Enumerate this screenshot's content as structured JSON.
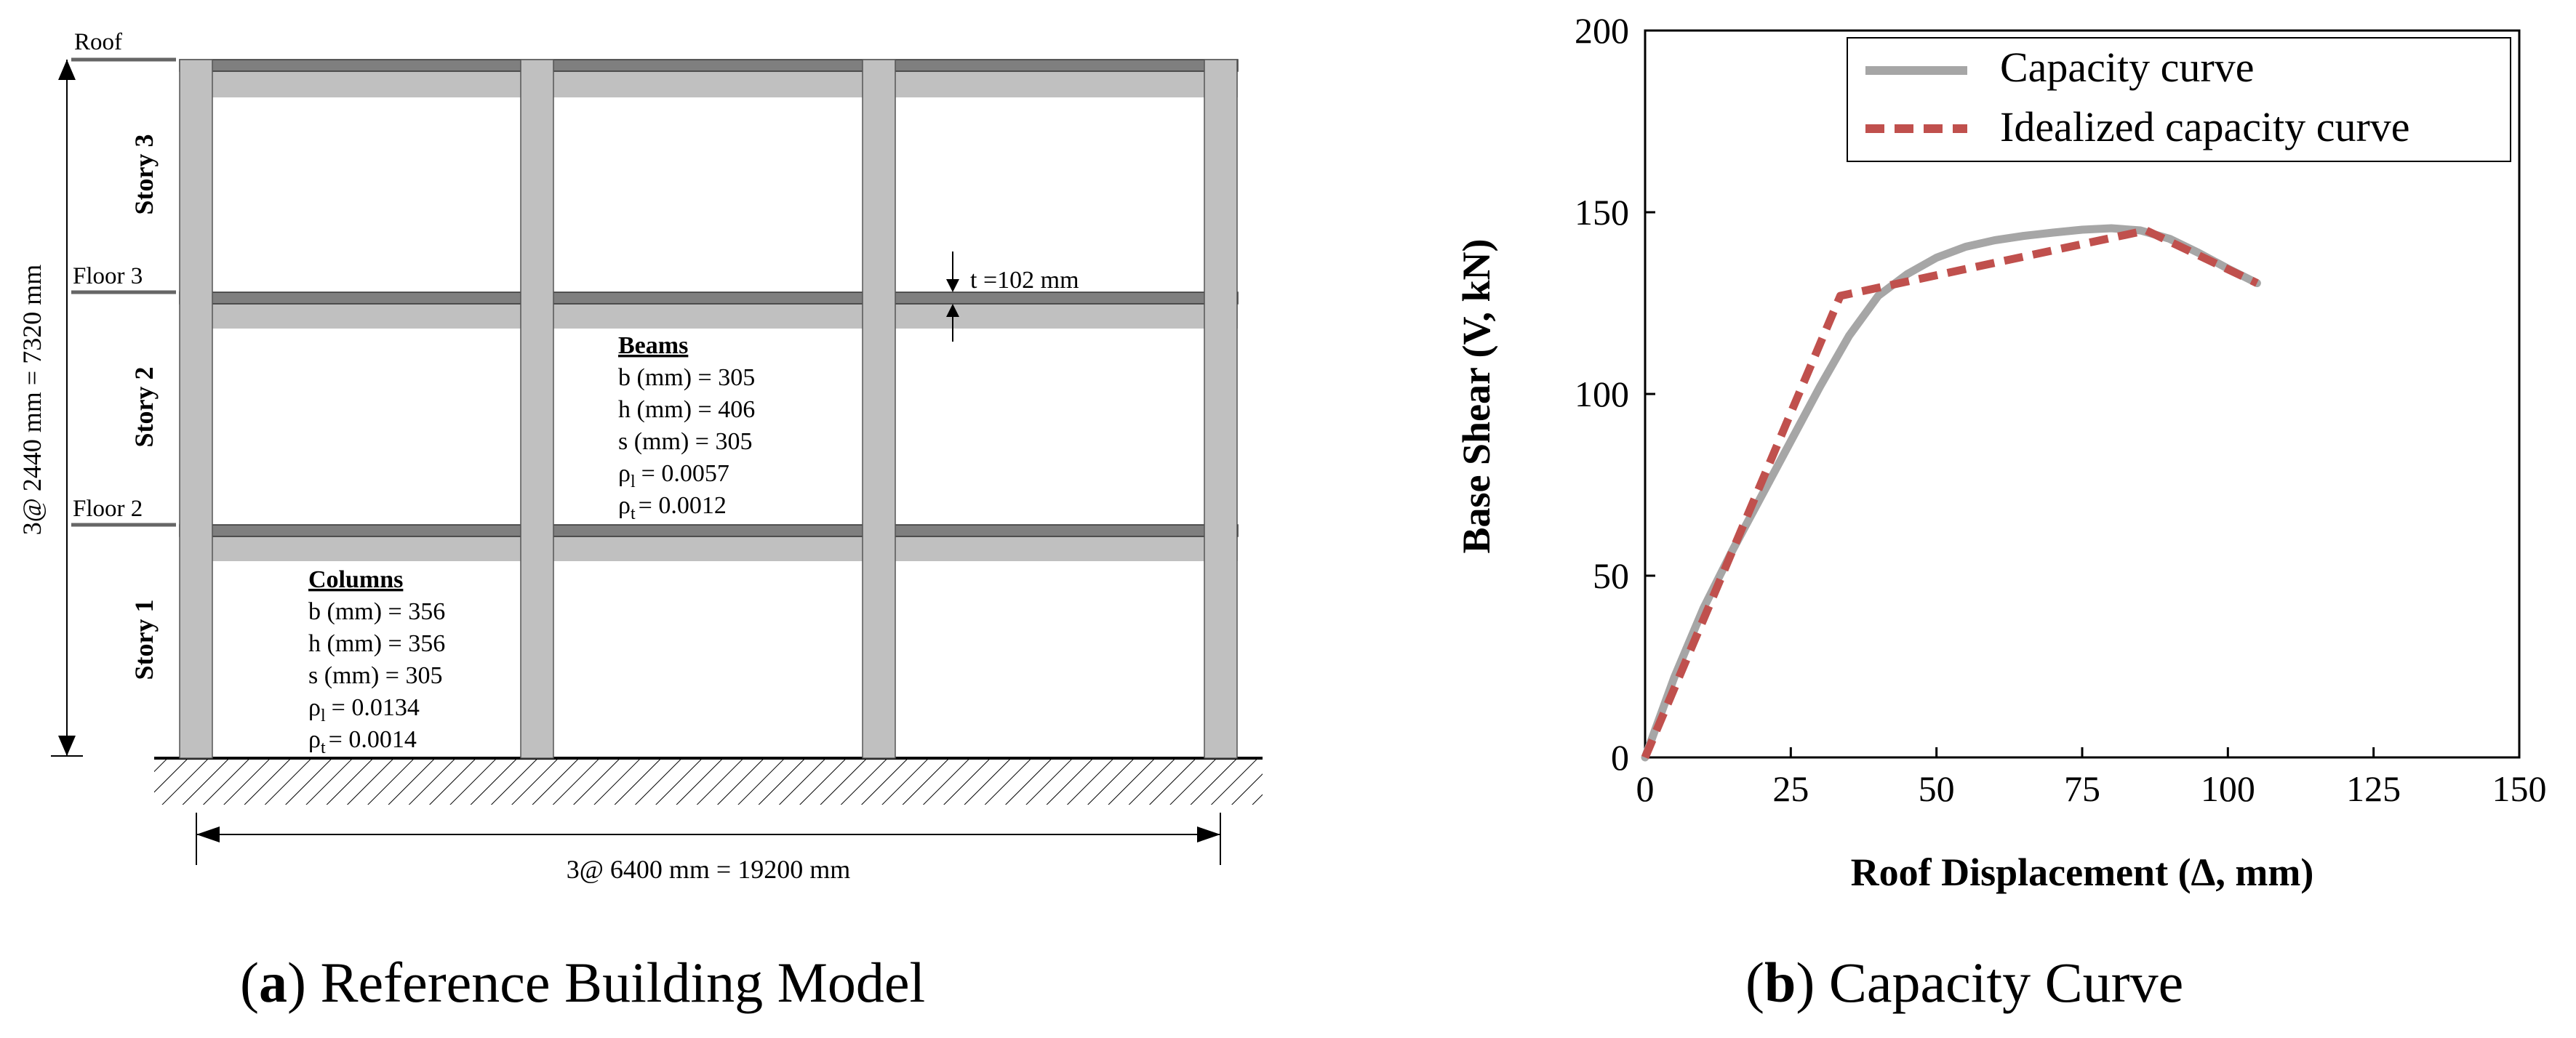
{
  "panel_a": {
    "levels": {
      "roof": "Roof",
      "floor3": "Floor 3",
      "floor2": "Floor 2"
    },
    "stories": [
      "Story 3",
      "Story 2",
      "Story 1"
    ],
    "height_dim": "3@ 2440 mm = 7320 mm",
    "width_dim": "3@ 6400 mm = 19200 mm",
    "slab_thickness": "t =102 mm",
    "beams": {
      "title": "Beams",
      "lines": [
        "b (mm) = 305",
        "h (mm) = 406",
        "s (mm) = 305"
      ],
      "rho_l": "= 0.0057",
      "rho_t": "= 0.0012"
    },
    "columns": {
      "title": "Columns",
      "lines": [
        "b (mm) = 356",
        "h (mm) = 356",
        "s (mm) = 305"
      ],
      "rho_l": "= 0.0134",
      "rho_t": "= 0.0014"
    },
    "rho_symbol": "ρ",
    "rho_l_sub": "l",
    "rho_t_sub": "t",
    "caption_label": "a",
    "caption_text": " Reference Building Model"
  },
  "panel_b": {
    "caption_label": "b",
    "caption_text": " Capacity Curve"
  },
  "colors": {
    "frame_fill": "#c0c0c0",
    "beam_dark": "#7f7f7f",
    "capacity": "#a6a6a6",
    "idealized": "#c0504d"
  },
  "chart_data": {
    "type": "line",
    "xlabel": "Roof Displacement (Δ, mm)",
    "ylabel": "Base Shear (V, kN)",
    "xlim": [
      0,
      150
    ],
    "ylim": [
      0,
      200
    ],
    "xticks": [
      0,
      25,
      50,
      75,
      100,
      125,
      150
    ],
    "yticks": [
      0,
      50,
      100,
      150,
      200
    ],
    "grid": false,
    "legend_position": "top-right",
    "series": [
      {
        "name": "Capacity curve",
        "style": "solid",
        "x": [
          0,
          5,
          10,
          15,
          20,
          25,
          30,
          35,
          40,
          45,
          50,
          55,
          60,
          65,
          70,
          75,
          80,
          85,
          90,
          95,
          100,
          105
        ],
        "y": [
          0,
          22,
          41,
          57,
          72,
          87,
          102,
          116,
          127,
          133,
          137.5,
          140.5,
          142.3,
          143.5,
          144.4,
          145.2,
          145.6,
          145,
          142.7,
          138.8,
          134.5,
          130.5
        ]
      },
      {
        "name": "Idealized capacity curve",
        "style": "dashed",
        "x": [
          0,
          33.5,
          86,
          105
        ],
        "y": [
          0,
          127,
          145,
          130.5
        ]
      }
    ]
  }
}
